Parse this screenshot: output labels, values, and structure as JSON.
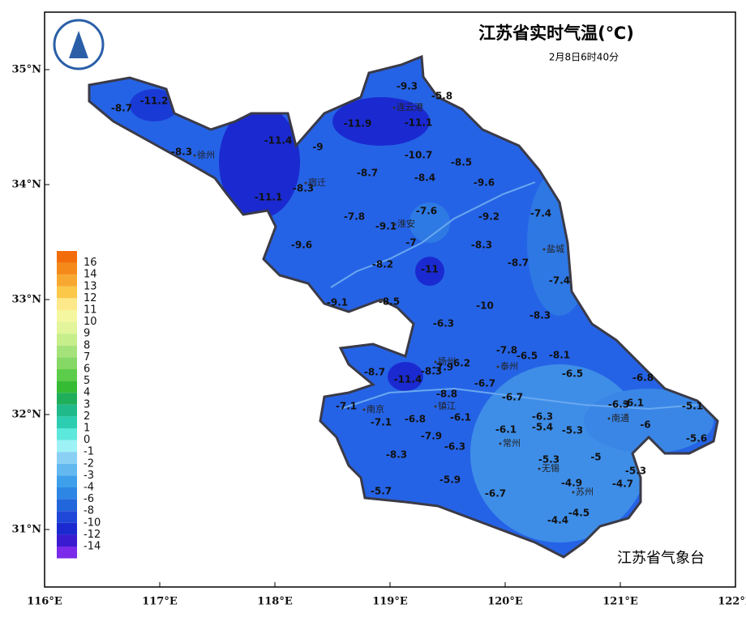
{
  "title": "江苏省实时气温(℃)",
  "subtitle": "2月8日6时40分",
  "footer": "江苏省气象台",
  "xlim": [
    116,
    122
  ],
  "ylim": [
    30.5,
    35.5
  ],
  "xticks": [
    {
      "value": 116,
      "label": "116°E"
    },
    {
      "value": 117,
      "label": "117°E"
    },
    {
      "value": 118,
      "label": "118°E"
    },
    {
      "value": 119,
      "label": "119°E"
    },
    {
      "value": 120,
      "label": "120°E"
    },
    {
      "value": 121,
      "label": "121°E"
    },
    {
      "value": 122,
      "label": "122°E"
    }
  ],
  "yticks": [
    {
      "value": 35,
      "label": "35°N"
    },
    {
      "value": 34,
      "label": "34°N"
    },
    {
      "value": 33,
      "label": "33°N"
    },
    {
      "value": 32,
      "label": "32°N"
    },
    {
      "value": 31,
      "label": "31°N"
    }
  ],
  "legend": {
    "labels": [
      16,
      14,
      13,
      12,
      11,
      10,
      9,
      8,
      7,
      6,
      5,
      4,
      3,
      2,
      1,
      0,
      -1,
      -2,
      -3,
      -4,
      -6,
      -8,
      -10,
      -12,
      -14
    ],
    "colors": [
      "#f26d0a",
      "#f58a1a",
      "#f8a830",
      "#fbc84a",
      "#fde98a",
      "#f5f7a0",
      "#e2f59a",
      "#c6ee8a",
      "#a6e27a",
      "#86d866",
      "#5ccd4a",
      "#36bb34",
      "#1fae5a",
      "#20b98a",
      "#2ccdb0",
      "#5ce8dc",
      "#9ef2f6",
      "#8ad0f5",
      "#64b8f0",
      "#3ea0ea",
      "#2e86e4",
      "#2266dc",
      "#1f48d8",
      "#1a2ad0",
      "#3a1bd0",
      "#7a2ae8"
    ]
  },
  "stations": [
    -9.3,
    -5.8,
    -8.7,
    -11.2,
    -11.9,
    -11.1,
    -11.4,
    -9.0,
    -8.3,
    -10.7,
    -8.5,
    -8.7,
    -8.4,
    -9.6,
    -8.3,
    -11.1,
    -7.6,
    -7.4,
    -7.8,
    -9.2,
    -9.1,
    -7.0,
    -8.3,
    -9.6,
    -8.2,
    -11.0,
    -8.7,
    -7.4,
    -9.1,
    -8.5,
    -10.0,
    -8.3,
    -6.3,
    -7.8,
    -6.5,
    -8.1,
    -8.7,
    -11.4,
    -8.3,
    -7.9,
    -6.2,
    -6.5,
    -6.8,
    -6.7,
    -8.8,
    -6.7,
    -6.3,
    -6.1,
    -5.1,
    -7.1,
    -6.3,
    -6.1,
    -6.8,
    -7.1,
    -5.4,
    -5.3,
    -6.0,
    -6.1,
    -7.9,
    -5.6,
    -6.3,
    -8.3,
    -5.0,
    -5.3,
    -5.3,
    -4.9,
    -4.7,
    -5.9,
    -5.7,
    -6.7,
    -4.5,
    -4.4
  ],
  "cities": [
    "连云港",
    "徐州",
    "宿迁",
    "淮安",
    "盐城",
    "扬州",
    "泰州",
    "镇江",
    "南京",
    "常州",
    "无锡",
    "苏州",
    "南通"
  ]
}
